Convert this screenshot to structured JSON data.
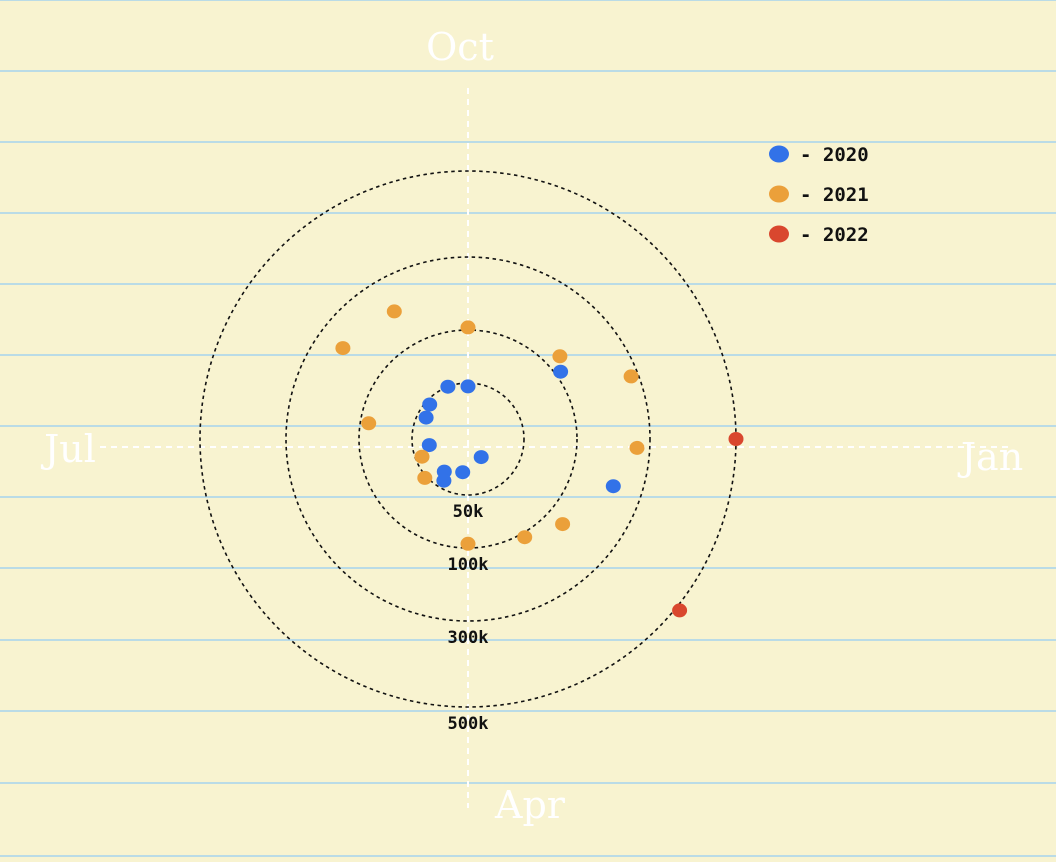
{
  "chart_data": {
    "type": "scatter",
    "coordinate_system": "polar",
    "angular_labels": {
      "top": "Oct",
      "left": "Jul",
      "right": "Jan",
      "bottom": "Apr"
    },
    "radial_ticks": [
      {
        "value": 50000,
        "label": "50k"
      },
      {
        "value": 100000,
        "label": "100k"
      },
      {
        "value": 300000,
        "label": "300k"
      },
      {
        "value": 500000,
        "label": "500k"
      }
    ],
    "legend_position": "top-right",
    "series": [
      {
        "name": "- 2020",
        "color": "#3272e8",
        "points": [
          {
            "month": 9.0,
            "value": 47000
          },
          {
            "month": 8.3,
            "value": 50000
          },
          {
            "month": 7.4,
            "value": 46000
          },
          {
            "month": 6.9,
            "value": 42000
          },
          {
            "month": 5.7,
            "value": 35000
          },
          {
            "month": 4.2,
            "value": 36000
          },
          {
            "month": 4.0,
            "value": 43000
          },
          {
            "month": 3.3,
            "value": 30000
          },
          {
            "month": 1.8,
            "value": 20000
          },
          {
            "month": 10.8,
            "value": 115000
          },
          {
            "month": 0.6,
            "value": 220000
          }
        ]
      },
      {
        "name": "- 2021",
        "color": "#eba03a",
        "points": [
          {
            "month": 9.0,
            "value": 107000
          },
          {
            "month": 8.0,
            "value": 205000
          },
          {
            "month": 7.2,
            "value": 225000
          },
          {
            "month": 6.3,
            "value": 92000
          },
          {
            "month": 5.3,
            "value": 44000
          },
          {
            "month": 4.6,
            "value": 52000
          },
          {
            "month": 3.0,
            "value": 96000
          },
          {
            "month": 2.0,
            "value": 112000
          },
          {
            "month": 1.4,
            "value": 150000
          },
          {
            "month": 0.1,
            "value": 265000
          },
          {
            "month": 11.3,
            "value": 280000
          },
          {
            "month": 10.6,
            "value": 140000
          }
        ]
      },
      {
        "name": "- 2022",
        "color": "#d9472e",
        "points": [
          {
            "month": 0.0,
            "value": 500000
          },
          {
            "month": 1.3,
            "value": 510000
          }
        ]
      }
    ]
  }
}
